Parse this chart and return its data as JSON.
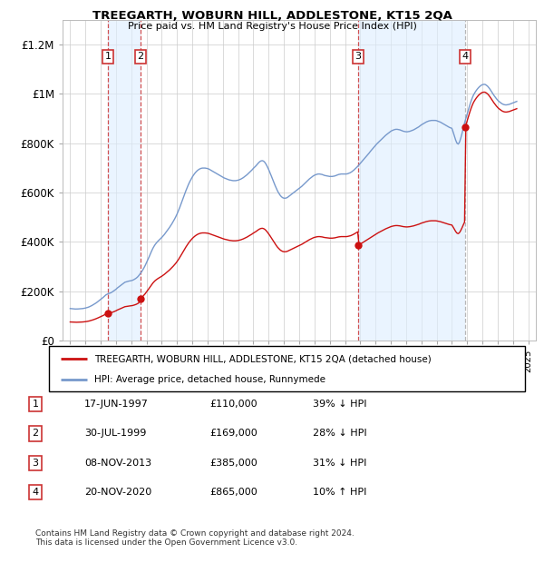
{
  "title": "TREEGARTH, WOBURN HILL, ADDLESTONE, KT15 2QA",
  "subtitle": "Price paid vs. HM Land Registry's House Price Index (HPI)",
  "hpi_color": "#7799cc",
  "price_color": "#cc1111",
  "sale_marker_color": "#cc1111",
  "vline_color_red": "#cc3333",
  "vline_color_grey": "#aaaaaa",
  "shade_color": "#ddeeff",
  "ylim": [
    0,
    1300000
  ],
  "yticks": [
    0,
    200000,
    400000,
    600000,
    800000,
    1000000,
    1200000
  ],
  "ytick_labels": [
    "£0",
    "£200K",
    "£400K",
    "£600K",
    "£800K",
    "£1M",
    "£1.2M"
  ],
  "xmin": 1994.5,
  "xmax": 2025.5,
  "sales": [
    {
      "num": 1,
      "date": "17-JUN-1997",
      "year": 1997.46,
      "price": 110000,
      "pct": "39%",
      "dir": "↓"
    },
    {
      "num": 2,
      "date": "30-JUL-1999",
      "year": 1999.58,
      "price": 169000,
      "pct": "28%",
      "dir": "↓"
    },
    {
      "num": 3,
      "date": "08-NOV-2013",
      "year": 2013.85,
      "price": 385000,
      "pct": "31%",
      "dir": "↓"
    },
    {
      "num": 4,
      "date": "20-NOV-2020",
      "year": 2020.88,
      "price": 865000,
      "pct": "10%",
      "dir": "↑"
    }
  ],
  "legend_label_price": "TREEGARTH, WOBURN HILL, ADDLESTONE, KT15 2QA (detached house)",
  "legend_label_hpi": "HPI: Average price, detached house, Runnymede",
  "footer": "Contains HM Land Registry data © Crown copyright and database right 2024.\nThis data is licensed under the Open Government Licence v3.0.",
  "hpi_data": {
    "years": [
      1995.0,
      1995.083,
      1995.167,
      1995.25,
      1995.333,
      1995.417,
      1995.5,
      1995.583,
      1995.667,
      1995.75,
      1995.833,
      1995.917,
      1996.0,
      1996.083,
      1996.167,
      1996.25,
      1996.333,
      1996.417,
      1996.5,
      1996.583,
      1996.667,
      1996.75,
      1996.833,
      1996.917,
      1997.0,
      1997.083,
      1997.167,
      1997.25,
      1997.333,
      1997.417,
      1997.5,
      1997.583,
      1997.667,
      1997.75,
      1997.833,
      1997.917,
      1998.0,
      1998.083,
      1998.167,
      1998.25,
      1998.333,
      1998.417,
      1998.5,
      1998.583,
      1998.667,
      1998.75,
      1998.833,
      1998.917,
      1999.0,
      1999.083,
      1999.167,
      1999.25,
      1999.333,
      1999.417,
      1999.5,
      1999.583,
      1999.667,
      1999.75,
      1999.833,
      1999.917,
      2000.0,
      2000.083,
      2000.167,
      2000.25,
      2000.333,
      2000.417,
      2000.5,
      2000.583,
      2000.667,
      2000.75,
      2000.833,
      2000.917,
      2001.0,
      2001.083,
      2001.167,
      2001.25,
      2001.333,
      2001.417,
      2001.5,
      2001.583,
      2001.667,
      2001.75,
      2001.833,
      2001.917,
      2002.0,
      2002.083,
      2002.167,
      2002.25,
      2002.333,
      2002.417,
      2002.5,
      2002.583,
      2002.667,
      2002.75,
      2002.833,
      2002.917,
      2003.0,
      2003.083,
      2003.167,
      2003.25,
      2003.333,
      2003.417,
      2003.5,
      2003.583,
      2003.667,
      2003.75,
      2003.833,
      2003.917,
      2004.0,
      2004.083,
      2004.167,
      2004.25,
      2004.333,
      2004.417,
      2004.5,
      2004.583,
      2004.667,
      2004.75,
      2004.833,
      2004.917,
      2005.0,
      2005.083,
      2005.167,
      2005.25,
      2005.333,
      2005.417,
      2005.5,
      2005.583,
      2005.667,
      2005.75,
      2005.833,
      2005.917,
      2006.0,
      2006.083,
      2006.167,
      2006.25,
      2006.333,
      2006.417,
      2006.5,
      2006.583,
      2006.667,
      2006.75,
      2006.833,
      2006.917,
      2007.0,
      2007.083,
      2007.167,
      2007.25,
      2007.333,
      2007.417,
      2007.5,
      2007.583,
      2007.667,
      2007.75,
      2007.833,
      2007.917,
      2008.0,
      2008.083,
      2008.167,
      2008.25,
      2008.333,
      2008.417,
      2008.5,
      2008.583,
      2008.667,
      2008.75,
      2008.833,
      2008.917,
      2009.0,
      2009.083,
      2009.167,
      2009.25,
      2009.333,
      2009.417,
      2009.5,
      2009.583,
      2009.667,
      2009.75,
      2009.833,
      2009.917,
      2010.0,
      2010.083,
      2010.167,
      2010.25,
      2010.333,
      2010.417,
      2010.5,
      2010.583,
      2010.667,
      2010.75,
      2010.833,
      2010.917,
      2011.0,
      2011.083,
      2011.167,
      2011.25,
      2011.333,
      2011.417,
      2011.5,
      2011.583,
      2011.667,
      2011.75,
      2011.833,
      2011.917,
      2012.0,
      2012.083,
      2012.167,
      2012.25,
      2012.333,
      2012.417,
      2012.5,
      2012.583,
      2012.667,
      2012.75,
      2012.833,
      2012.917,
      2013.0,
      2013.083,
      2013.167,
      2013.25,
      2013.333,
      2013.417,
      2013.5,
      2013.583,
      2013.667,
      2013.75,
      2013.833,
      2013.917,
      2014.0,
      2014.083,
      2014.167,
      2014.25,
      2014.333,
      2014.417,
      2014.5,
      2014.583,
      2014.667,
      2014.75,
      2014.833,
      2014.917,
      2015.0,
      2015.083,
      2015.167,
      2015.25,
      2015.333,
      2015.417,
      2015.5,
      2015.583,
      2015.667,
      2015.75,
      2015.833,
      2015.917,
      2016.0,
      2016.083,
      2016.167,
      2016.25,
      2016.333,
      2016.417,
      2016.5,
      2016.583,
      2016.667,
      2016.75,
      2016.833,
      2016.917,
      2017.0,
      2017.083,
      2017.167,
      2017.25,
      2017.333,
      2017.417,
      2017.5,
      2017.583,
      2017.667,
      2017.75,
      2017.833,
      2017.917,
      2018.0,
      2018.083,
      2018.167,
      2018.25,
      2018.333,
      2018.417,
      2018.5,
      2018.583,
      2018.667,
      2018.75,
      2018.833,
      2018.917,
      2019.0,
      2019.083,
      2019.167,
      2019.25,
      2019.333,
      2019.417,
      2019.5,
      2019.583,
      2019.667,
      2019.75,
      2019.833,
      2019.917,
      2020.0,
      2020.083,
      2020.167,
      2020.25,
      2020.333,
      2020.417,
      2020.5,
      2020.583,
      2020.667,
      2020.75,
      2020.833,
      2020.917,
      2021.0,
      2021.083,
      2021.167,
      2021.25,
      2021.333,
      2021.417,
      2021.5,
      2021.583,
      2021.667,
      2021.75,
      2021.833,
      2021.917,
      2022.0,
      2022.083,
      2022.167,
      2022.25,
      2022.333,
      2022.417,
      2022.5,
      2022.583,
      2022.667,
      2022.75,
      2022.833,
      2022.917,
      2023.0,
      2023.083,
      2023.167,
      2023.25,
      2023.333,
      2023.417,
      2023.5,
      2023.583,
      2023.667,
      2023.75,
      2023.833,
      2023.917,
      2024.0,
      2024.083,
      2024.167,
      2024.25
    ],
    "values": [
      130000,
      129500,
      129000,
      128500,
      128000,
      128000,
      128200,
      128500,
      129000,
      129500,
      130000,
      131000,
      132000,
      133500,
      135000,
      137000,
      139500,
      142000,
      145000,
      148000,
      151500,
      155000,
      159000,
      163000,
      167000,
      171000,
      175500,
      180000,
      185000,
      188000,
      190500,
      192000,
      194000,
      197000,
      200500,
      204000,
      208000,
      213000,
      217000,
      221000,
      225000,
      229000,
      233000,
      236500,
      238000,
      239500,
      241000,
      242000,
      243000,
      244500,
      247000,
      250000,
      253500,
      258000,
      264000,
      271000,
      278000,
      286000,
      295000,
      305000,
      316000,
      327000,
      339000,
      351000,
      363000,
      374000,
      383000,
      391000,
      397000,
      403000,
      408000,
      413000,
      418000,
      424000,
      430000,
      437000,
      444000,
      451000,
      458000,
      466000,
      474000,
      483000,
      492000,
      502000,
      513000,
      525000,
      538000,
      552000,
      566000,
      580000,
      594000,
      608000,
      621000,
      633000,
      644000,
      654000,
      663000,
      671000,
      678000,
      684000,
      689000,
      693000,
      696000,
      698000,
      699000,
      699000,
      699000,
      698000,
      697000,
      695000,
      692000,
      689000,
      686000,
      683000,
      680000,
      677000,
      674000,
      671000,
      668000,
      665000,
      662000,
      659000,
      657000,
      655000,
      653000,
      651000,
      650000,
      649000,
      648000,
      648000,
      648000,
      649000,
      650000,
      652000,
      654000,
      657000,
      660000,
      664000,
      668000,
      672000,
      677000,
      682000,
      687000,
      692000,
      698000,
      703000,
      708000,
      714000,
      720000,
      725000,
      728000,
      729000,
      727000,
      722000,
      714000,
      704000,
      693000,
      681000,
      668000,
      655000,
      642000,
      629000,
      617000,
      606000,
      597000,
      589000,
      583000,
      579000,
      577000,
      577000,
      578000,
      581000,
      585000,
      589000,
      593000,
      597000,
      601000,
      605000,
      609000,
      613000,
      617000,
      621000,
      625000,
      630000,
      635000,
      640000,
      645000,
      650000,
      655000,
      659000,
      663000,
      667000,
      670000,
      672000,
      674000,
      675000,
      675000,
      674000,
      673000,
      671000,
      669000,
      668000,
      667000,
      666000,
      665000,
      665000,
      665000,
      666000,
      667000,
      669000,
      671000,
      673000,
      674000,
      675000,
      675000,
      675000,
      675000,
      675000,
      676000,
      678000,
      680000,
      683000,
      687000,
      691000,
      696000,
      701000,
      706000,
      712000,
      718000,
      724000,
      730000,
      736000,
      742000,
      748000,
      754000,
      760000,
      767000,
      773000,
      779000,
      785000,
      791000,
      797000,
      802000,
      807000,
      812000,
      817000,
      822000,
      827000,
      832000,
      836000,
      840000,
      844000,
      848000,
      851000,
      853000,
      855000,
      856000,
      856000,
      855000,
      854000,
      852000,
      850000,
      848000,
      847000,
      846000,
      846000,
      847000,
      848000,
      850000,
      852000,
      854000,
      857000,
      860000,
      863000,
      866000,
      870000,
      874000,
      877000,
      880000,
      883000,
      886000,
      888000,
      890000,
      891000,
      892000,
      892000,
      892000,
      892000,
      891000,
      889000,
      887000,
      885000,
      882000,
      879000,
      876000,
      873000,
      870000,
      867000,
      864000,
      862000,
      860000,
      845000,
      828000,
      812000,
      800000,
      796000,
      804000,
      820000,
      840000,
      862000,
      882000,
      900000,
      918000,
      936000,
      953000,
      969000,
      983000,
      995000,
      1004000,
      1012000,
      1019000,
      1025000,
      1030000,
      1034000,
      1037000,
      1038000,
      1038000,
      1035000,
      1031000,
      1025000,
      1018000,
      1010000,
      1002000,
      994000,
      987000,
      980000,
      974000,
      969000,
      965000,
      961000,
      958000,
      956000,
      955000,
      955000,
      956000,
      957000,
      959000,
      961000,
      963000,
      965000,
      967000,
      969000
    ]
  }
}
